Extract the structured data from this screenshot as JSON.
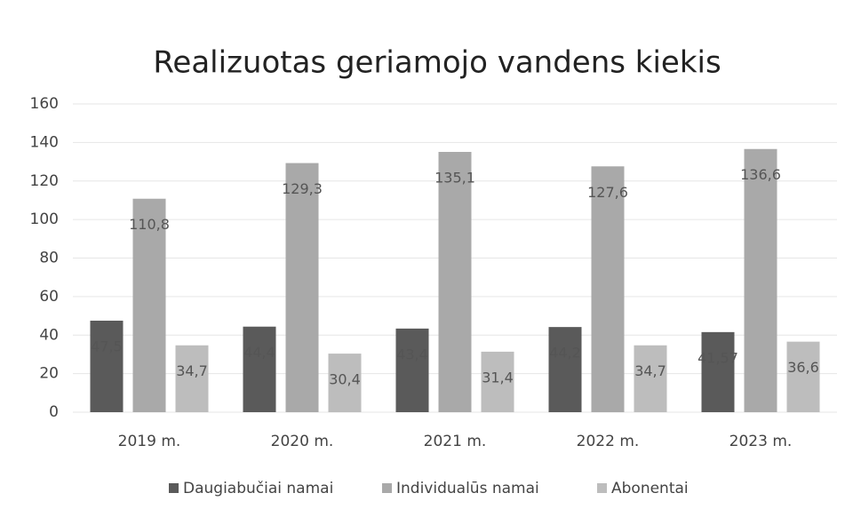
{
  "chart_data": {
    "type": "bar",
    "title": "Realizuotas geriamojo vandens kiekis",
    "categories": [
      "2019 m.",
      "2020 m.",
      "2021 m.",
      "2022 m.",
      "2023 m."
    ],
    "series": [
      {
        "name": "Daugiabučiai namai",
        "color": "#5a5a5a",
        "values": [
          47.5,
          44.4,
          43.4,
          44.2,
          41.57
        ],
        "value_labels": [
          "47,5",
          "44,4",
          "43,4",
          "44,2",
          "41,57"
        ]
      },
      {
        "name": "Individualūs namai",
        "color": "#a9a9a9",
        "values": [
          110.8,
          129.3,
          135.1,
          127.6,
          136.6
        ],
        "value_labels": [
          "110,8",
          "129,3",
          "135,1",
          "127,6",
          "136,6"
        ]
      },
      {
        "name": "Abonentai",
        "color": "#bdbdbd",
        "values": [
          34.7,
          30.4,
          31.4,
          34.7,
          36.6
        ],
        "value_labels": [
          "34,7",
          "30,4",
          "31,4",
          "34,7",
          "36,6"
        ]
      }
    ],
    "ylim": [
      0,
      160
    ],
    "yticks": [
      0,
      20,
      40,
      60,
      80,
      100,
      120,
      140,
      160
    ],
    "grid": true,
    "legend": "bottom"
  }
}
